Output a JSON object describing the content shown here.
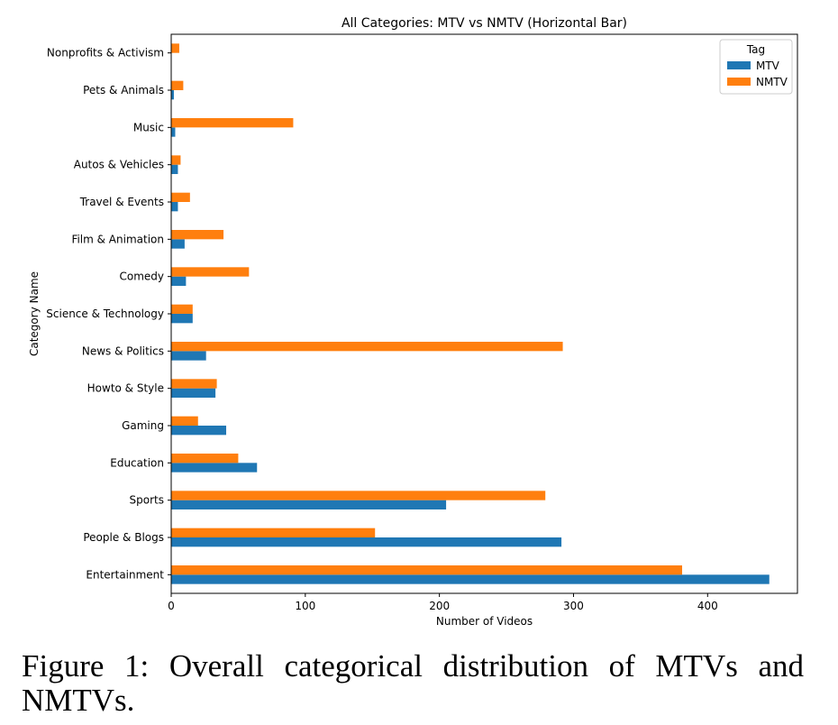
{
  "chart_data": {
    "type": "bar",
    "orientation": "horizontal",
    "title": "All Categories: MTV vs NMTV (Horizontal Bar)",
    "xlabel": "Number of Videos",
    "ylabel": "Category Name",
    "xlim": [
      0,
      467
    ],
    "xticks": [
      0,
      100,
      200,
      300,
      400
    ],
    "grid": false,
    "legend": {
      "title": "Tag",
      "placement": "top-right"
    },
    "categories": [
      "Entertainment",
      "People & Blogs",
      "Sports",
      "Education",
      "Gaming",
      "Howto & Style",
      "News & Politics",
      "Science & Technology",
      "Comedy",
      "Film & Animation",
      "Travel & Events",
      "Autos & Vehicles",
      "Music",
      "Pets & Animals",
      "Nonprofits & Activism"
    ],
    "series": [
      {
        "name": "MTV",
        "color": "#1f77b4",
        "values": [
          446,
          291,
          205,
          64,
          41,
          33,
          26,
          16,
          11,
          10,
          5,
          5,
          3,
          2,
          0
        ]
      },
      {
        "name": "NMTV",
        "color": "#ff7f0e",
        "values": [
          381,
          152,
          279,
          50,
          20,
          34,
          292,
          16,
          58,
          39,
          14,
          7,
          91,
          9,
          6
        ]
      }
    ]
  },
  "caption": "Figure 1: Overall categorical distribution of MTVs and NMTVs."
}
